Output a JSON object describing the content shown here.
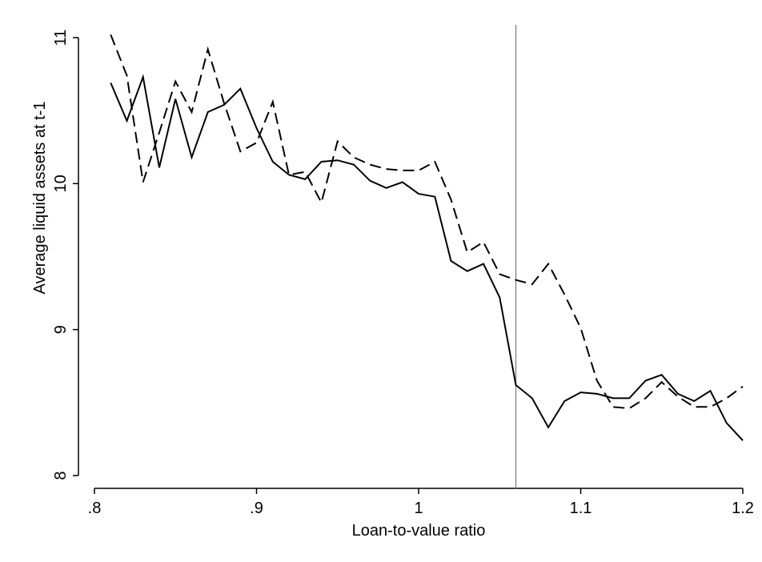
{
  "chart_data": {
    "type": "line",
    "title": "",
    "xlabel": "Loan-to-value ratio",
    "ylabel": "Average liquid assets at t-1",
    "xlim": [
      0.8,
      1.2
    ],
    "ylim": [
      8,
      11
    ],
    "x_ticks": [
      0.8,
      0.9,
      1.0,
      1.1,
      1.2
    ],
    "x_tick_labels": [
      ".8",
      ".9",
      "1",
      "1.1",
      "1.2"
    ],
    "y_ticks": [
      8,
      9,
      10,
      11
    ],
    "y_tick_labels": [
      "8",
      "9",
      "10",
      "11"
    ],
    "grid": false,
    "legend": "none",
    "vline": 1.06,
    "x": [
      0.81,
      0.82,
      0.83,
      0.84,
      0.85,
      0.86,
      0.87,
      0.88,
      0.89,
      0.9,
      0.91,
      0.92,
      0.93,
      0.94,
      0.95,
      0.96,
      0.97,
      0.98,
      0.99,
      1.0,
      1.01,
      1.02,
      1.03,
      1.04,
      1.05,
      1.06,
      1.07,
      1.08,
      1.09,
      1.1,
      1.11,
      1.12,
      1.13,
      1.14,
      1.15,
      1.16,
      1.17,
      1.18,
      1.19,
      1.2
    ],
    "series": [
      {
        "style": "solid",
        "color": "#000000",
        "values": [
          10.69,
          10.43,
          10.73,
          10.11,
          10.58,
          10.18,
          10.49,
          10.54,
          10.65,
          10.38,
          10.15,
          10.06,
          10.03,
          10.15,
          10.16,
          10.13,
          10.02,
          9.97,
          10.01,
          9.93,
          9.91,
          9.47,
          9.4,
          9.45,
          9.22,
          8.62,
          8.53,
          8.33,
          8.51,
          8.57,
          8.56,
          8.53,
          8.53,
          8.65,
          8.69,
          8.56,
          8.51,
          8.58,
          8.36,
          8.24
        ]
      },
      {
        "style": "dashed",
        "color": "#000000",
        "values": [
          11.02,
          10.74,
          10.01,
          10.35,
          10.7,
          10.49,
          10.92,
          10.55,
          10.22,
          10.28,
          10.56,
          10.06,
          10.08,
          9.87,
          10.29,
          10.18,
          10.13,
          10.1,
          10.09,
          10.09,
          10.15,
          9.89,
          9.53,
          9.6,
          9.38,
          9.34,
          9.31,
          9.45,
          9.24,
          9.01,
          8.65,
          8.47,
          8.46,
          8.53,
          8.64,
          8.54,
          8.47,
          8.47,
          8.53,
          8.61
        ]
      }
    ]
  }
}
